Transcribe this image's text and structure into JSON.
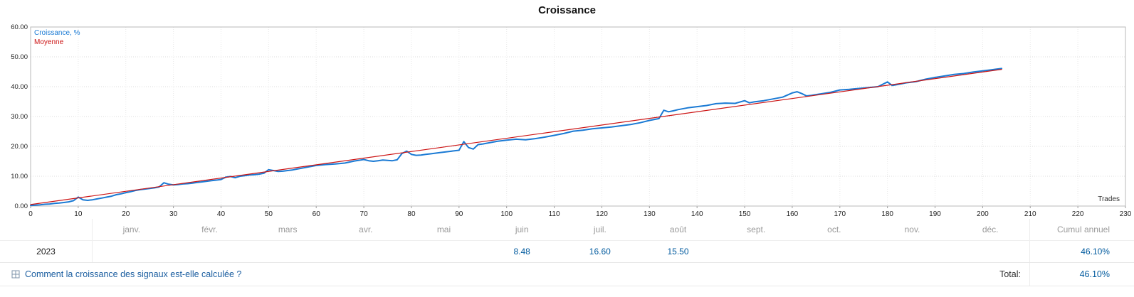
{
  "title": "Croissance",
  "chart_data": {
    "type": "line",
    "title": "Croissance",
    "xlabel": "Trades",
    "ylabel": "",
    "xlim": [
      0,
      230
    ],
    "ylim": [
      0,
      60
    ],
    "x_tick_step": 10,
    "y_tick_step": 10,
    "grid": true,
    "legend_position": "top-left",
    "legend": [
      "Croissance, %",
      "Moyenne"
    ],
    "series": [
      {
        "name": "Croissance, %",
        "color": "#1a7ad4",
        "width": 2,
        "points": [
          [
            0,
            0.2
          ],
          [
            1,
            0.3
          ],
          [
            2,
            0.4
          ],
          [
            3,
            0.6
          ],
          [
            4,
            0.7
          ],
          [
            5,
            0.9
          ],
          [
            6,
            1.0
          ],
          [
            7,
            1.2
          ],
          [
            8,
            1.4
          ],
          [
            9,
            1.8
          ],
          [
            10,
            3.0
          ],
          [
            11,
            2.1
          ],
          [
            12,
            1.9
          ],
          [
            13,
            2.1
          ],
          [
            14,
            2.4
          ],
          [
            15,
            2.7
          ],
          [
            16,
            3.0
          ],
          [
            17,
            3.3
          ],
          [
            18,
            3.8
          ],
          [
            19,
            4.1
          ],
          [
            20,
            4.5
          ],
          [
            21,
            4.8
          ],
          [
            22,
            5.2
          ],
          [
            23,
            5.5
          ],
          [
            24,
            5.7
          ],
          [
            25,
            5.9
          ],
          [
            26,
            6.1
          ],
          [
            27,
            6.4
          ],
          [
            28,
            7.8
          ],
          [
            29,
            7.3
          ],
          [
            30,
            7.1
          ],
          [
            31,
            7.2
          ],
          [
            32,
            7.4
          ],
          [
            33,
            7.5
          ],
          [
            34,
            7.7
          ],
          [
            35,
            7.9
          ],
          [
            36,
            8.1
          ],
          [
            37,
            8.3
          ],
          [
            38,
            8.5
          ],
          [
            39,
            8.7
          ],
          [
            40,
            8.9
          ],
          [
            41,
            9.7
          ],
          [
            42,
            9.9
          ],
          [
            43,
            9.5
          ],
          [
            44,
            10.0
          ],
          [
            45,
            10.2
          ],
          [
            46,
            10.4
          ],
          [
            47,
            10.5
          ],
          [
            48,
            10.7
          ],
          [
            49,
            11.0
          ],
          [
            50,
            12.2
          ],
          [
            51,
            11.9
          ],
          [
            52,
            11.6
          ],
          [
            53,
            11.7
          ],
          [
            54,
            11.9
          ],
          [
            55,
            12.1
          ],
          [
            56,
            12.4
          ],
          [
            57,
            12.7
          ],
          [
            58,
            13.0
          ],
          [
            59,
            13.3
          ],
          [
            60,
            13.6
          ],
          [
            62,
            13.9
          ],
          [
            64,
            14.1
          ],
          [
            66,
            14.4
          ],
          [
            68,
            15.1
          ],
          [
            70,
            15.6
          ],
          [
            71,
            15.2
          ],
          [
            72,
            15.0
          ],
          [
            73,
            15.2
          ],
          [
            74,
            15.4
          ],
          [
            75,
            15.3
          ],
          [
            76,
            15.2
          ],
          [
            77,
            15.5
          ],
          [
            78,
            17.6
          ],
          [
            79,
            18.4
          ],
          [
            80,
            17.3
          ],
          [
            81,
            17.0
          ],
          [
            82,
            17.1
          ],
          [
            83,
            17.3
          ],
          [
            84,
            17.5
          ],
          [
            86,
            17.9
          ],
          [
            88,
            18.3
          ],
          [
            90,
            18.7
          ],
          [
            91,
            21.6
          ],
          [
            92,
            19.6
          ],
          [
            93,
            19.1
          ],
          [
            94,
            20.6
          ],
          [
            95,
            20.8
          ],
          [
            96,
            21.1
          ],
          [
            98,
            21.7
          ],
          [
            100,
            22.1
          ],
          [
            102,
            22.4
          ],
          [
            104,
            22.2
          ],
          [
            106,
            22.6
          ],
          [
            108,
            23.1
          ],
          [
            110,
            23.7
          ],
          [
            112,
            24.3
          ],
          [
            114,
            25.1
          ],
          [
            116,
            25.4
          ],
          [
            118,
            25.9
          ],
          [
            120,
            26.2
          ],
          [
            122,
            26.5
          ],
          [
            124,
            26.9
          ],
          [
            126,
            27.3
          ],
          [
            128,
            27.9
          ],
          [
            130,
            28.7
          ],
          [
            132,
            29.3
          ],
          [
            133,
            32.1
          ],
          [
            134,
            31.6
          ],
          [
            135,
            31.9
          ],
          [
            136,
            32.3
          ],
          [
            138,
            32.9
          ],
          [
            140,
            33.3
          ],
          [
            142,
            33.7
          ],
          [
            144,
            34.3
          ],
          [
            146,
            34.5
          ],
          [
            148,
            34.4
          ],
          [
            150,
            35.3
          ],
          [
            151,
            34.6
          ],
          [
            152,
            34.9
          ],
          [
            154,
            35.3
          ],
          [
            156,
            35.9
          ],
          [
            158,
            36.5
          ],
          [
            160,
            37.9
          ],
          [
            161,
            38.3
          ],
          [
            162,
            37.7
          ],
          [
            163,
            36.9
          ],
          [
            164,
            37.1
          ],
          [
            166,
            37.6
          ],
          [
            168,
            38.1
          ],
          [
            170,
            38.9
          ],
          [
            172,
            39.1
          ],
          [
            174,
            39.4
          ],
          [
            176,
            39.7
          ],
          [
            178,
            40.0
          ],
          [
            180,
            41.6
          ],
          [
            181,
            40.4
          ],
          [
            182,
            40.7
          ],
          [
            184,
            41.3
          ],
          [
            186,
            41.7
          ],
          [
            188,
            42.5
          ],
          [
            190,
            43.1
          ],
          [
            192,
            43.6
          ],
          [
            194,
            44.1
          ],
          [
            196,
            44.4
          ],
          [
            198,
            44.9
          ],
          [
            200,
            45.3
          ],
          [
            202,
            45.7
          ],
          [
            204,
            46.1
          ]
        ]
      },
      {
        "name": "Moyenne",
        "color": "#cc1414",
        "width": 1.2,
        "points": [
          [
            0,
            0.5
          ],
          [
            204,
            45.8
          ]
        ]
      }
    ]
  },
  "table": {
    "months": [
      "janv.",
      "févr.",
      "mars",
      "avr.",
      "mai",
      "juin",
      "juil.",
      "août",
      "sept.",
      "oct.",
      "nov.",
      "déc."
    ],
    "cumul_header": "Cumul annuel",
    "rows": [
      {
        "year": "2023",
        "values": [
          "",
          "",
          "",
          "",
          "",
          "8.48",
          "16.60",
          "15.50",
          "",
          "",
          "",
          ""
        ],
        "cumul": "46.10%"
      }
    ]
  },
  "footer": {
    "link": "Comment la croissance des signaux est-elle calculée ?",
    "total_label": "Total:",
    "total_value": "46.10%"
  },
  "colors": {
    "growth_line": "#1a7ad4",
    "average_line": "#cc1414",
    "value_text": "#005a9e",
    "muted_text": "#9a9a9a"
  }
}
